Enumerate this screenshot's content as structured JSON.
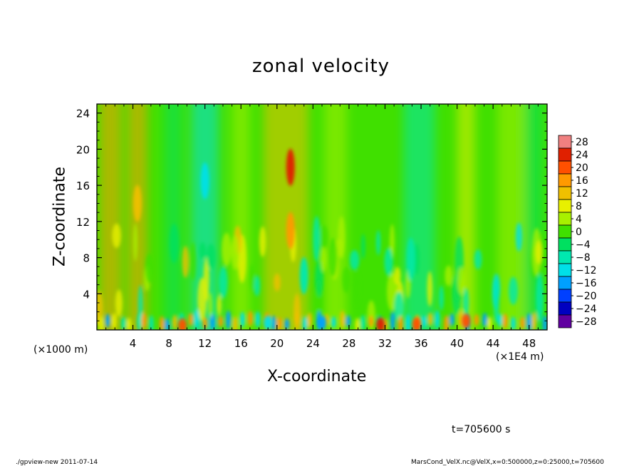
{
  "chart_data": {
    "type": "heatmap",
    "title": "zonal velocity",
    "xlabel": "X-coordinate",
    "ylabel": "Z-coordinate",
    "x_unit_left": "(×1000 m)",
    "x_unit_right": "(×1E4 m)",
    "xlim": [
      0,
      50
    ],
    "ylim": [
      0,
      25
    ],
    "x_ticks": [
      4,
      8,
      12,
      16,
      20,
      24,
      28,
      32,
      36,
      40,
      44,
      48
    ],
    "y_ticks": [
      4,
      8,
      12,
      16,
      20,
      24
    ],
    "colorbar": {
      "levels": [
        28,
        24,
        20,
        16,
        12,
        8,
        4,
        0,
        -4,
        -8,
        -12,
        -16,
        -20,
        -24,
        -28
      ],
      "labels": [
        "28",
        "24",
        "20",
        "16",
        "12",
        "8",
        "4",
        "0",
        "−4",
        "−8",
        "−12",
        "−16",
        "−20",
        "−24",
        "−28"
      ],
      "colors": [
        "#f08080",
        "#e02000",
        "#ff5000",
        "#ff9a00",
        "#f0c000",
        "#e8f000",
        "#a8f000",
        "#40e000",
        "#00e060",
        "#00e8b0",
        "#00e0e8",
        "#00a0ff",
        "#0040ff",
        "#0000c0",
        "#6000a0"
      ]
    },
    "features": [
      {
        "x": 21.5,
        "z": 18.0,
        "value": 22
      },
      {
        "x": 21.5,
        "z": 11.0,
        "value": 16
      },
      {
        "x": 12.0,
        "z": 16.5,
        "value": -12
      },
      {
        "x": 4.5,
        "z": 14.0,
        "value": 12
      },
      {
        "x": 9.5,
        "z": 0.5,
        "value": 20
      },
      {
        "x": 31.5,
        "z": 0.6,
        "value": 24
      },
      {
        "x": 35.5,
        "z": 0.6,
        "value": 20
      },
      {
        "x": 41.0,
        "z": 1.0,
        "value": 20
      },
      {
        "x": 25.0,
        "z": 0.8,
        "value": -16
      },
      {
        "x": 19.0,
        "z": 0.8,
        "value": -14
      },
      {
        "x": 23.0,
        "z": 6.0,
        "value": -10
      }
    ]
  },
  "annotations": {
    "time_label": "t=705600 s",
    "footer_left": "./gpview-new   2011-07-14",
    "footer_right": "MarsCond_VelX.nc@VelX,x=0:500000,z=0:25000,t=705600"
  }
}
